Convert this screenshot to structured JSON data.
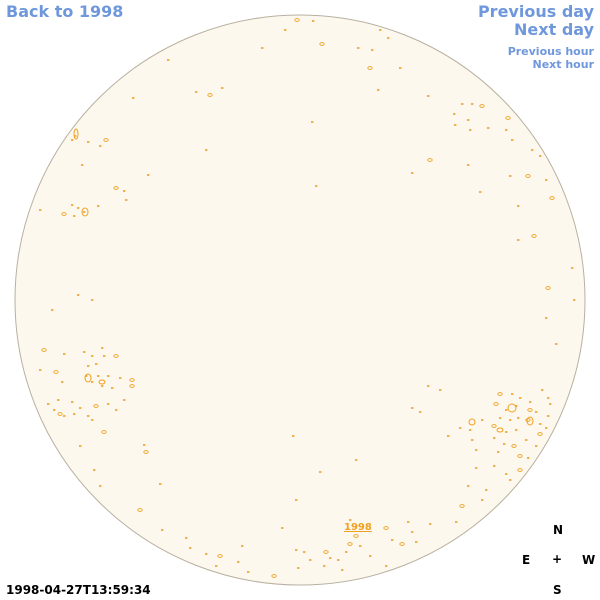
{
  "nav": {
    "back_label": "Back to 1998",
    "previous_day_label": "Previous day",
    "next_day_label": "Next day",
    "previous_hour_label": "Previous hour",
    "next_hour_label": "Next hour"
  },
  "disk": {
    "fill_color": "#fdf8ee",
    "limb_color": "#b8b0a0",
    "contour_color": "#f0a020",
    "year_link_label": "1998"
  },
  "compass": {
    "north": "N",
    "east": "E",
    "center": "+",
    "west": "W",
    "south": "S"
  },
  "timestamp": "1998-04-27T13:59:34"
}
